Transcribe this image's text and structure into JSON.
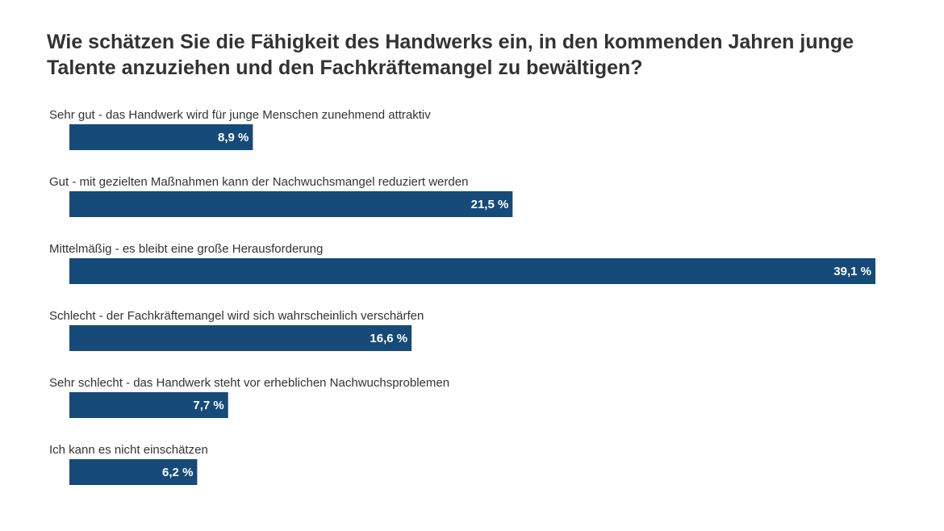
{
  "chart_data": {
    "type": "hbar",
    "title": "Wie schätzen Sie die Fähigkeit des Handwerks ein, in den kommenden Jahren junge Talente anzuziehen und den Fachkräftemangel zu bewältigen?",
    "categories": [
      "Sehr gut - das Handwerk wird für junge Menschen zunehmend attraktiv",
      "Gut - mit gezielten Maßnahmen kann der Nachwuchsmangel reduziert werden",
      "Mittelmäßig - es bleibt eine große Herausforderung",
      "Schlecht - der Fachkräftemangel wird sich wahrscheinlich verschärfen",
      "Sehr schlecht - das Handwerk steht vor erheblichen Nachwuchsproblemen",
      "Ich kann es nicht einschätzen"
    ],
    "values": [
      8.9,
      21.5,
      39.1,
      16.6,
      7.7,
      6.2
    ],
    "value_labels": [
      "8,9 %",
      "21,5 %",
      "39,1 %",
      "16,6 %",
      "7,7 %",
      "6,2 %"
    ],
    "color": "#164a78"
  }
}
